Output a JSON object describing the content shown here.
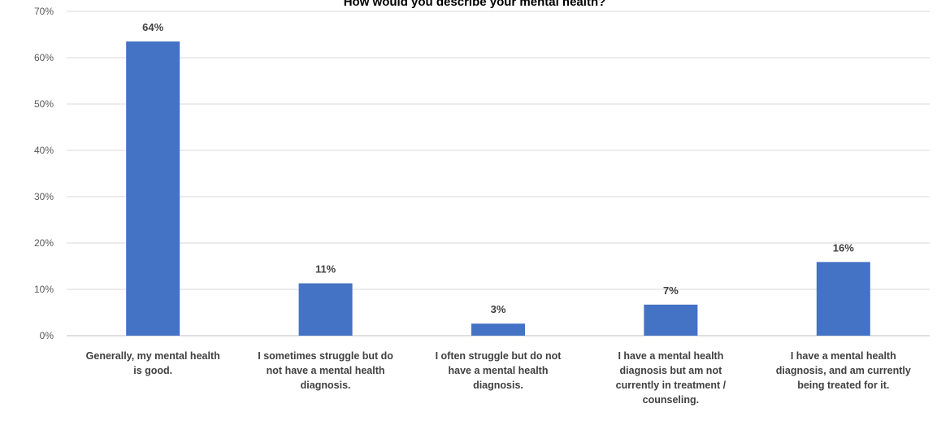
{
  "chart_data": {
    "type": "bar",
    "title": "How would you describe your mental health?",
    "categories": [
      "Generally, my mental health is good.",
      "I sometimes struggle but do not have a mental health diagnosis.",
      "I often struggle but do not have a mental health diagnosis.",
      "I have a mental health diagnosis but am not currently in treatment / counseling.",
      "I have a mental health diagnosis, and am currently being treated for it."
    ],
    "category_label_lines": [
      [
        "Generally, my mental health",
        "is good."
      ],
      [
        "I sometimes struggle but do",
        "not have a mental health",
        "diagnosis."
      ],
      [
        "I often struggle but do not",
        "have a mental health",
        "diagnosis."
      ],
      [
        "I have a mental health",
        "diagnosis but am not",
        "currently in treatment /",
        "counseling."
      ],
      [
        "I have a mental health",
        "diagnosis, and am currently",
        "being treated for it."
      ]
    ],
    "values": [
      63.5,
      11.3,
      2.6,
      6.7,
      15.9
    ],
    "data_labels": [
      "64%",
      "11%",
      "3%",
      "7%",
      "16%"
    ],
    "ylim": [
      0,
      70
    ],
    "yticks": [
      0,
      10,
      20,
      30,
      40,
      50,
      60,
      70
    ],
    "ytick_labels": [
      "0%",
      "10%",
      "20%",
      "30%",
      "40%",
      "50%",
      "60%",
      "70%"
    ],
    "xlabel": "",
    "ylabel": "",
    "grid": true,
    "legend": "none",
    "bar_color": "#4472c4"
  }
}
